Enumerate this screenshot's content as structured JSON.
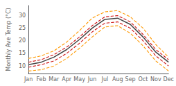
{
  "chart_data": {
    "type": "line",
    "ylabel": "Monthly Ave Temp (°C)",
    "categories": [
      "Jan",
      "Feb",
      "Mar",
      "Apr",
      "May",
      "Jun",
      "Jul",
      "Aug",
      "Sep",
      "Oct",
      "Nov",
      "Dec"
    ],
    "series": [
      {
        "color": "#ff9900",
        "line_style": "dashed",
        "values": [
          8.0,
          8.5,
          10.0,
          13.0,
          17.0,
          21.5,
          25.5,
          26.0,
          23.0,
          18.0,
          12.0,
          8.0
        ]
      },
      {
        "color": "#ff9900",
        "line_style": "dashed",
        "values": [
          13.0,
          14.0,
          16.0,
          19.5,
          24.0,
          29.0,
          31.5,
          32.0,
          29.5,
          25.0,
          18.5,
          13.5
        ]
      },
      {
        "color": "#cc1111",
        "line_style": "dashed",
        "values": [
          9.5,
          10.5,
          12.0,
          15.0,
          19.0,
          23.5,
          27.0,
          27.5,
          25.0,
          20.0,
          14.0,
          10.0
        ]
      },
      {
        "color": "#cc1111",
        "line_style": "dashed",
        "values": [
          11.5,
          12.5,
          14.5,
          17.5,
          21.5,
          26.0,
          29.5,
          30.0,
          27.5,
          22.5,
          16.5,
          12.5
        ]
      },
      {
        "color": "#444444",
        "line_style": "solid",
        "values": [
          10.5,
          11.5,
          13.5,
          16.5,
          20.5,
          25.0,
          28.5,
          29.0,
          26.5,
          21.5,
          15.5,
          11.5
        ]
      }
    ],
    "ylim": [
      7,
      34
    ],
    "yticks": [
      10,
      15,
      20,
      25,
      30
    ],
    "grid": false
  }
}
